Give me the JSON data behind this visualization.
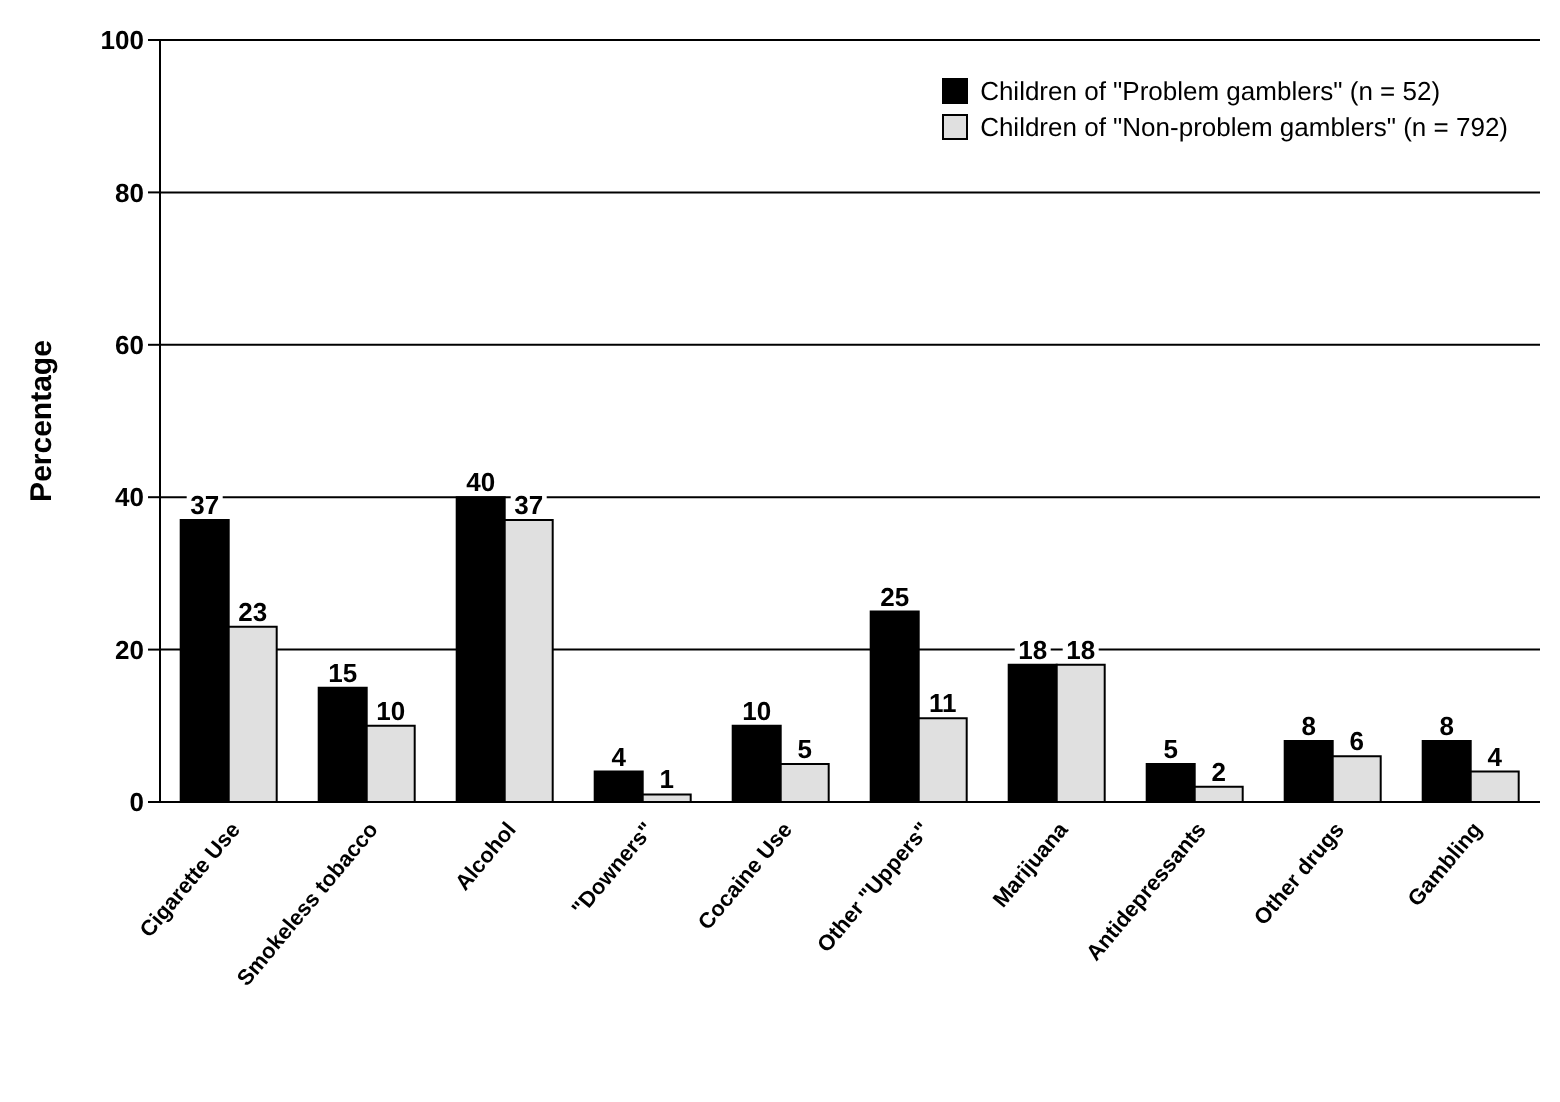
{
  "chart_data": {
    "type": "bar",
    "ylabel": "Percentage",
    "categories": [
      "Cigarette Use",
      "Smokeless tobacco",
      "Alcohol",
      "\"Downers\"",
      "Cocaine Use",
      "Other \"Uppers\"",
      "Marijuana",
      "Antidepressants",
      "Other drugs",
      "Gambling"
    ],
    "series": [
      {
        "name": "Children of \"Problem gamblers\" (n = 52)",
        "color": "#000000",
        "values": [
          37,
          15,
          40,
          4,
          10,
          25,
          18,
          5,
          8,
          8
        ]
      },
      {
        "name": "Children of \"Non-problem gamblers\" (n = 792)",
        "color": "#e0e0e0",
        "values": [
          23,
          10,
          37,
          1,
          5,
          11,
          18,
          2,
          6,
          4
        ]
      }
    ],
    "ylim": [
      0,
      100
    ],
    "yticks": [
      0,
      20,
      40,
      60,
      80,
      100
    ],
    "grid": "y",
    "legend": "top right",
    "data_labels": true
  }
}
